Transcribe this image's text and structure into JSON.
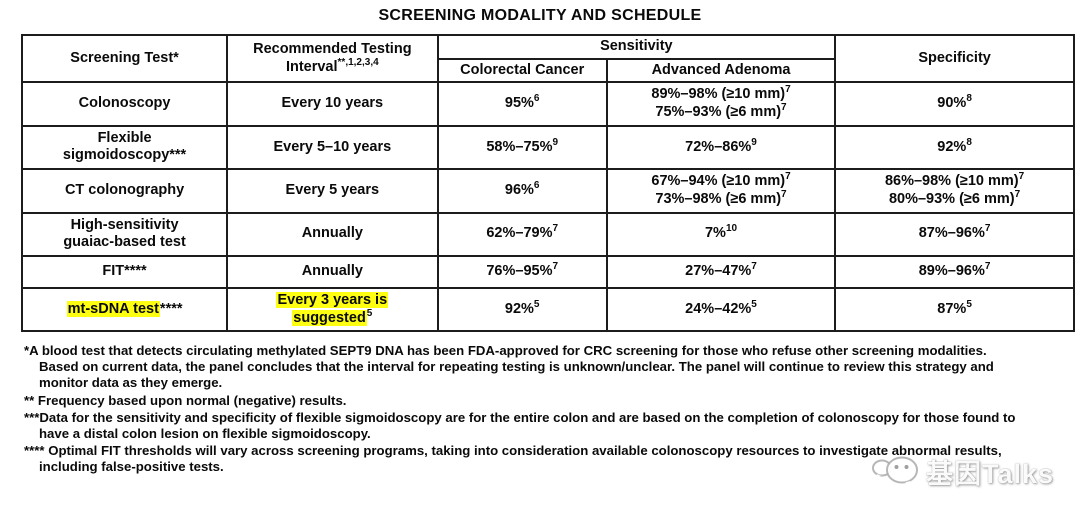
{
  "title": "SCREENING MODALITY AND SCHEDULE",
  "table": {
    "headers": {
      "screening_test": "Screening Test*",
      "interval_line1": "Recommended Testing",
      "interval_line2": "Interval",
      "interval_sup": "**,1,2,3,4",
      "sensitivity": "Sensitivity",
      "colorectal_cancer": "Colorectal Cancer",
      "advanced_adenoma": "Advanced Adenoma",
      "specificity": "Specificity"
    },
    "rows": [
      {
        "test": [
          {
            "text": "Colonoscopy"
          }
        ],
        "interval": [
          {
            "text": "Every 10 years"
          }
        ],
        "crc": [
          {
            "text": "95%",
            "sup": "6"
          }
        ],
        "adenoma": [
          {
            "text": "89%–98% (≥10 mm)",
            "sup": "7"
          },
          {
            "text": "75%–93% (≥6 mm)",
            "sup": "7"
          }
        ],
        "spec": [
          {
            "text": "90%",
            "sup": "8"
          }
        ]
      },
      {
        "test": [
          {
            "text": "Flexible"
          },
          {
            "text": "sigmoidoscopy***"
          }
        ],
        "interval": [
          {
            "text": "Every 5–10 years"
          }
        ],
        "crc": [
          {
            "text": "58%–75%",
            "sup": "9"
          }
        ],
        "adenoma": [
          {
            "text": "72%–86%",
            "sup": "9"
          }
        ],
        "spec": [
          {
            "text": "92%",
            "sup": "8"
          }
        ]
      },
      {
        "test": [
          {
            "text": "CT colonography"
          }
        ],
        "interval": [
          {
            "text": "Every 5 years"
          }
        ],
        "crc": [
          {
            "text": "96%",
            "sup": "6"
          }
        ],
        "adenoma": [
          {
            "text": "67%–94% (≥10 mm)",
            "sup": "7"
          },
          {
            "text": "73%–98% (≥6 mm)",
            "sup": "7"
          }
        ],
        "spec": [
          {
            "text": "86%–98% (≥10 mm)",
            "sup": "7"
          },
          {
            "text": "80%–93% (≥6 mm)",
            "sup": "7"
          }
        ]
      },
      {
        "test": [
          {
            "text": "High-sensitivity"
          },
          {
            "text": "guaiac-based test"
          }
        ],
        "interval": [
          {
            "text": "Annually"
          }
        ],
        "crc": [
          {
            "text": "62%–79%",
            "sup": "7"
          }
        ],
        "adenoma": [
          {
            "text": "7%",
            "sup": "10"
          }
        ],
        "spec": [
          {
            "text": "87%–96%",
            "sup": "7"
          }
        ]
      },
      {
        "test": [
          {
            "text": "FIT****"
          }
        ],
        "interval": [
          {
            "text": "Annually"
          }
        ],
        "crc": [
          {
            "text": "76%–95%",
            "sup": "7"
          }
        ],
        "adenoma": [
          {
            "text": "27%–47%",
            "sup": "7"
          }
        ],
        "spec": [
          {
            "text": "89%–96%",
            "sup": "7"
          }
        ]
      },
      {
        "test": [
          {
            "text": "mt-sDNA test",
            "highlight": true,
            "tail": "****"
          }
        ],
        "interval": [
          {
            "text": "Every 3 years is",
            "highlight": true
          },
          {
            "text": "suggested",
            "highlight": true,
            "sup": "5"
          }
        ],
        "crc": [
          {
            "text": "92%",
            "sup": "5"
          }
        ],
        "adenoma": [
          {
            "text": "24%–42%",
            "sup": "5"
          }
        ],
        "spec": [
          {
            "text": "87%",
            "sup": "5"
          }
        ]
      }
    ]
  },
  "footnotes": [
    {
      "text": "*A blood test that detects circulating methylated SEPT9 DNA has been FDA-approved for CRC screening for those who refuse other screening modalities. Based on current data, the panel concludes that the interval for repeating testing is unknown/unclear. The panel will continue to review this strategy and monitor data as they emerge."
    },
    {
      "text": "** Frequency based upon normal (negative) results."
    },
    {
      "text": "***Data for the sensitivity and specificity of flexible sigmoidoscopy are for the entire colon and are based on the completion of colonoscopy for those found to have a distal colon lesion on flexible sigmoidoscopy."
    },
    {
      "text": "**** Optimal FIT thresholds will vary across screening programs, taking into consideration available colonoscopy resources to investigate abnormal results, including false-positive tests."
    }
  ],
  "watermark": {
    "text": "基因Talks"
  },
  "colors": {
    "highlight": "#ffff12",
    "border": "#1c1c1c",
    "text": "#0a0a0a",
    "background": "#ffffff"
  }
}
